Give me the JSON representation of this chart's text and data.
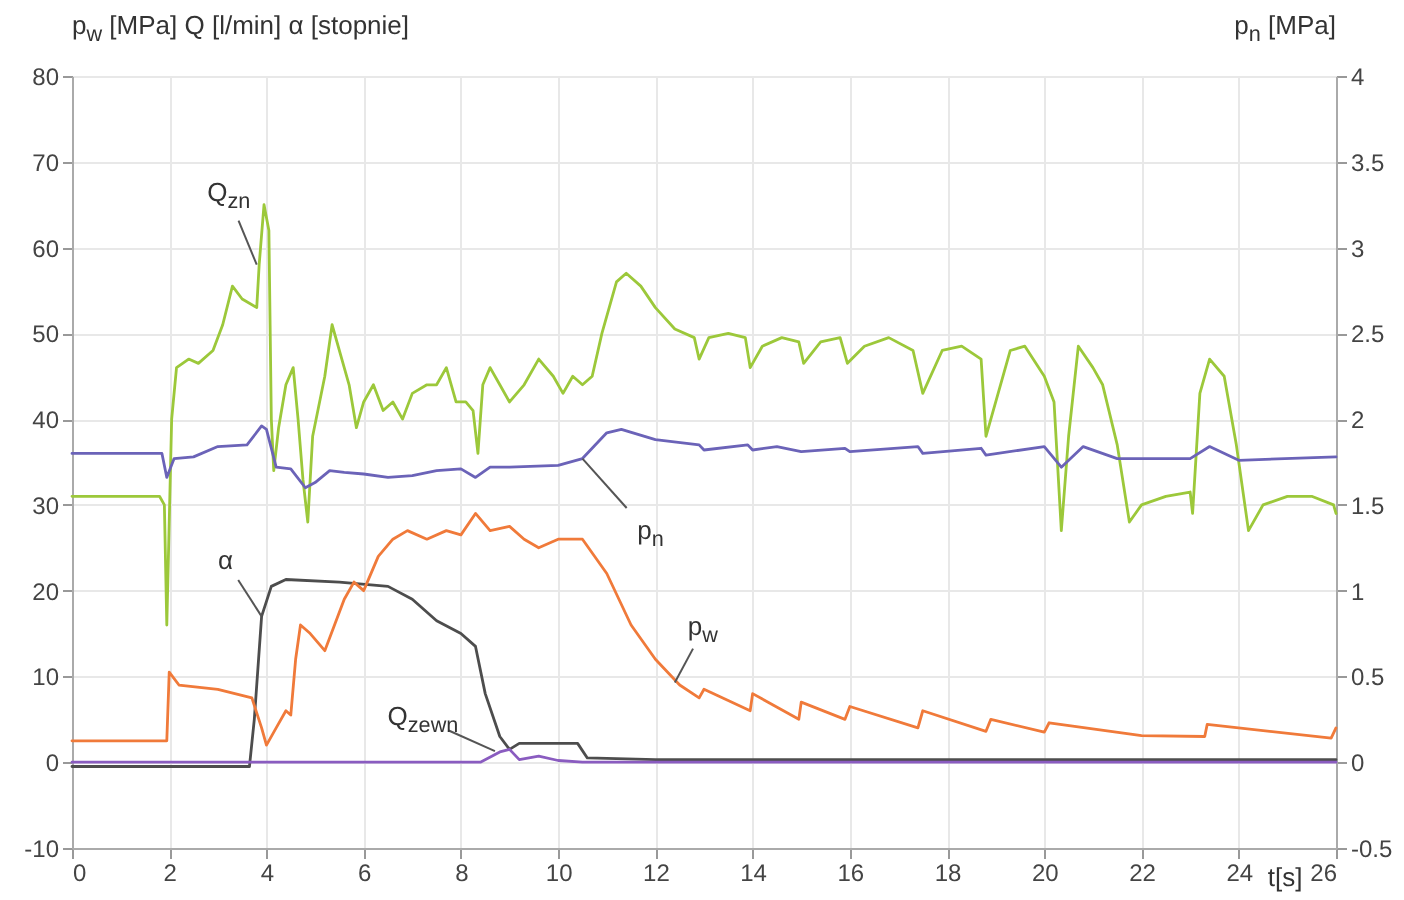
{
  "chart_data": {
    "type": "line",
    "xlabel": "t[s]",
    "ylabel": "p$_{w}$ [MPa] Q [l/min] α [stopnie]",
    "y2label": "p$_{n}$ [MPa]",
    "xlim": [
      0,
      26
    ],
    "xticks": [
      0,
      2,
      4,
      6,
      8,
      10,
      12,
      14,
      16,
      18,
      20,
      22,
      24,
      26
    ],
    "ylim": [
      -10,
      80
    ],
    "yticks": [
      -10,
      0,
      10,
      20,
      30,
      40,
      50,
      60,
      70,
      80
    ],
    "y2lim": [
      -0.5,
      4
    ],
    "y2ticks": [
      -0.5,
      0,
      0.5,
      1,
      1.5,
      2,
      2.5,
      3,
      3.5,
      4
    ],
    "grid": true,
    "line_style": "solid",
    "series": [
      {
        "color": "#9cc83a",
        "x": [
          0,
          1.8,
          1.9,
          1.95,
          2.05,
          2.15,
          2.4,
          2.6,
          2.9,
          3.1,
          3.3,
          3.5,
          3.8,
          3.85,
          3.95,
          4.05,
          4.1,
          4.15,
          4.25,
          4.4,
          4.55,
          4.65,
          4.75,
          4.85,
          4.95,
          5.2,
          5.35,
          5.55,
          5.7,
          5.85,
          6,
          6.2,
          6.4,
          6.6,
          6.8,
          7,
          7.3,
          7.5,
          7.7,
          7.9,
          8.1,
          8.25,
          8.35,
          8.45,
          8.6,
          8.8,
          9,
          9.3,
          9.6,
          9.9,
          10.1,
          10.3,
          10.5,
          10.7,
          10.9,
          11.2,
          11.4,
          11.7,
          12,
          12.4,
          12.8,
          12.9,
          13.1,
          13.5,
          13.85,
          13.95,
          14.2,
          14.6,
          14.95,
          15.05,
          15.4,
          15.8,
          15.95,
          16.3,
          16.8,
          17.3,
          17.5,
          17.9,
          18.3,
          18.7,
          18.8,
          19.3,
          19.6,
          20,
          20.2,
          20.35,
          20.5,
          20.7,
          21,
          21.2,
          21.5,
          21.75,
          22,
          22.5,
          23,
          23.05,
          23.2,
          23.4,
          23.7,
          23.95,
          24.2,
          24.5,
          25,
          25.5,
          25.95,
          26
        ],
        "values": [
          31,
          31,
          30,
          16,
          40,
          46,
          47,
          46.5,
          48,
          51,
          55.5,
          54,
          53,
          58,
          65,
          62,
          40,
          34,
          39,
          44,
          46,
          40,
          33,
          28,
          38,
          45,
          51,
          47,
          44,
          39,
          42,
          44,
          41,
          42,
          40,
          43,
          44,
          44,
          46,
          42,
          42,
          41,
          36,
          44,
          46,
          44,
          42,
          44,
          47,
          45,
          43,
          45,
          44,
          45,
          50,
          56,
          57,
          55.5,
          53,
          50.5,
          49.5,
          47,
          49.5,
          50,
          49.5,
          46,
          48.5,
          49.5,
          49,
          46.5,
          49,
          49.5,
          46.5,
          48.5,
          49.5,
          48,
          43,
          48,
          48.5,
          47,
          38,
          48,
          48.5,
          45,
          42,
          27,
          38,
          48.5,
          46,
          44,
          37,
          28,
          30,
          31,
          31.5,
          29,
          43,
          47,
          45,
          37,
          27,
          30,
          31,
          31,
          30,
          29
        ]
      },
      {
        "color": "#6b63b8",
        "axis": "y2",
        "x": [
          0,
          1.85,
          1.95,
          2.1,
          2.5,
          3,
          3.6,
          3.9,
          4,
          4.2,
          4.5,
          4.8,
          5,
          5.3,
          5.6,
          6,
          6.5,
          7,
          7.5,
          8,
          8.3,
          8.6,
          9,
          10,
          10.5,
          11,
          11.3,
          12,
          12.9,
          13,
          13.9,
          14,
          14.5,
          15,
          15.9,
          16,
          17.4,
          17.5,
          18.7,
          18.8,
          20,
          20.35,
          20.8,
          21.5,
          23,
          23.4,
          24,
          26
        ],
        "values": [
          1.8,
          1.8,
          1.66,
          1.77,
          1.78,
          1.84,
          1.85,
          1.96,
          1.94,
          1.72,
          1.71,
          1.6,
          1.63,
          1.7,
          1.69,
          1.68,
          1.66,
          1.67,
          1.7,
          1.71,
          1.66,
          1.72,
          1.72,
          1.73,
          1.77,
          1.92,
          1.94,
          1.88,
          1.85,
          1.82,
          1.85,
          1.82,
          1.84,
          1.81,
          1.83,
          1.81,
          1.84,
          1.8,
          1.83,
          1.79,
          1.84,
          1.72,
          1.84,
          1.77,
          1.77,
          1.84,
          1.76,
          1.78
        ]
      },
      {
        "color": "#4d4d4d",
        "x": [
          0,
          3.65,
          3.75,
          3.9,
          4.1,
          4.4,
          5.5,
          6.5,
          7,
          7.5,
          8,
          8.3,
          8.5,
          8.8,
          9,
          9.2,
          10.4,
          10.6,
          12,
          26
        ],
        "values": [
          -0.5,
          -0.5,
          5,
          17,
          20.5,
          21.3,
          21,
          20.5,
          19,
          16.5,
          15,
          13.5,
          8,
          3,
          1.5,
          2.2,
          2.2,
          0.5,
          0.3,
          0.3
        ]
      },
      {
        "color": "#f07a3a",
        "x": [
          0,
          1.95,
          2,
          2.2,
          3,
          3.7,
          3.9,
          4,
          4.2,
          4.4,
          4.5,
          4.6,
          4.7,
          4.9,
          5.2,
          5.4,
          5.6,
          5.8,
          6,
          6.3,
          6.6,
          6.9,
          7.3,
          7.7,
          8,
          8.3,
          8.6,
          9,
          9.3,
          9.6,
          10,
          10.5,
          11,
          11.5,
          12,
          12.5,
          12.9,
          13,
          13.95,
          14,
          14.95,
          15,
          15.9,
          16,
          17.4,
          17.5,
          18.8,
          18.9,
          20,
          20.1,
          22,
          23.3,
          23.35,
          25.9,
          26
        ],
        "values": [
          2.5,
          2.5,
          10.5,
          9,
          8.5,
          7.5,
          4,
          2,
          4,
          6,
          5.5,
          12,
          16,
          15,
          13,
          16,
          19,
          21,
          20,
          24,
          26,
          27,
          26,
          27,
          26.5,
          29,
          27,
          27.5,
          26,
          25,
          26,
          26,
          22,
          16,
          12,
          9,
          7.5,
          8.5,
          6,
          8,
          5,
          7,
          5,
          6.5,
          4,
          6,
          3.6,
          5,
          3.5,
          4.6,
          3.1,
          3,
          4.4,
          2.8,
          4
        ]
      },
      {
        "color": "#8a5cc0",
        "x": [
          0,
          8.4,
          8.8,
          9,
          9.2,
          9.6,
          10,
          10.5,
          26
        ],
        "values": [
          0,
          0,
          1.2,
          1.5,
          0.3,
          0.7,
          0.2,
          0,
          0
        ]
      }
    ],
    "annotations": [
      {
        "text": "Q$_{zn}$",
        "x": 3.8,
        "y": 58
      },
      {
        "text": "p$_{n}$",
        "x": 10.5,
        "y": 35.4
      },
      {
        "text": "α",
        "x": 3.9,
        "y": 17
      },
      {
        "text": "p$_{w}$",
        "x": 12.4,
        "y": 9.3
      },
      {
        "text": "Q$_{zewn}$",
        "x": 8.7,
        "y": 1.3
      }
    ]
  }
}
